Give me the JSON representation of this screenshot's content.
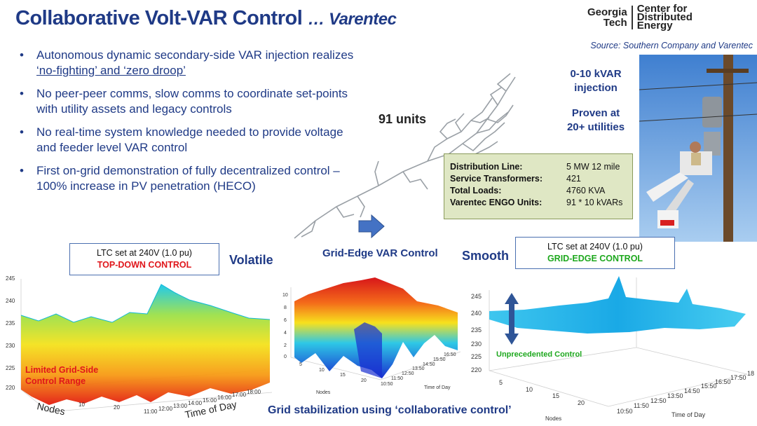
{
  "header": {
    "title": "Collaborative Volt-VAR Control",
    "subtitle": "… Varentec"
  },
  "logo": {
    "left_line1": "Georgia",
    "left_line2": "Tech",
    "right_line1": "Center for",
    "right_line2": "Distributed",
    "right_line3": "Energy"
  },
  "source": "Source: Southern Company and Varentec",
  "bullets": [
    {
      "pre": "Autonomous dynamic secondary-side VAR injection realizes ",
      "underlined": "‘no-fighting’ and ‘zero droop’"
    },
    {
      "pre": "No peer-peer comms, slow comms to coordinate set-points with utility assets and legacy controls",
      "underlined": ""
    },
    {
      "pre": "No real-time system knowledge needed to provide voltage and feeder level VAR control",
      "underlined": ""
    },
    {
      "pre": "First on-grid demonstration of fully decentralized control – 100% increase in PV penetration (HECO)",
      "underlined": ""
    }
  ],
  "map": {
    "units_label": "91 units"
  },
  "highlights": {
    "kvar_line1": "0-10 kVAR",
    "kvar_line2": "injection",
    "proven_line1": "Proven at",
    "proven_line2": "20+ utilities"
  },
  "infobox": [
    {
      "key": "Distribution Line:",
      "value": "5 MW 12 mile"
    },
    {
      "key": "Service Transformers:",
      "value": "421"
    },
    {
      "key": "Total Loads:",
      "value": "4760 KVA"
    },
    {
      "key": "Varentec ENGO Units:",
      "value": "91 * 10 kVARs"
    }
  ],
  "labels": {
    "ltc_left_line1": "LTC set at 240V (1.0 pu)",
    "ltc_left_line2": "TOP-DOWN CONTROL",
    "ltc_right_line1": "LTC set at 240V (1.0 pu)",
    "ltc_right_line2": "GRID-EDGE CONTROL",
    "volatile": "Volatile",
    "grid_edge_var": "Grid-Edge VAR Control",
    "smooth": "Smooth",
    "limited_line1": "Limited Grid-Side",
    "limited_line2": "Control Range",
    "unprecedented": "Unprecedented Control",
    "footer": "Grid stabilization using ‘collaborative control’"
  },
  "plots": {
    "left": {
      "z_ticks": [
        "245",
        "240",
        "235",
        "230",
        "225",
        "220"
      ],
      "node_ticks": [
        "10",
        "20"
      ],
      "time_ticks": [
        "11:00",
        "12:00",
        "13:00",
        "14:00",
        "15:00",
        "16:00",
        "17:00",
        "18:00"
      ],
      "xlabel": "Nodes",
      "ylabel": "Time of Day"
    },
    "middle": {
      "z_ticks": [
        "10",
        "8",
        "6",
        "4",
        "2",
        "0"
      ],
      "node_ticks": [
        "5",
        "10",
        "15",
        "20"
      ],
      "time_ticks": [
        "10:50",
        "11:50",
        "12:50",
        "13:50",
        "14:50",
        "15:50",
        "16:50"
      ],
      "xlabel": "Nodes",
      "ylabel": "Time of Day"
    },
    "right": {
      "z_ticks": [
        "245",
        "240",
        "235",
        "230",
        "225",
        "220"
      ],
      "node_ticks": [
        "5",
        "10",
        "15",
        "20"
      ],
      "time_ticks": [
        "10:50",
        "11:50",
        "12:50",
        "13:50",
        "14:50",
        "15:50",
        "16:50",
        "17:50",
        "18"
      ],
      "xlabel": "Nodes",
      "ylabel": "Time of Day"
    }
  },
  "colors": {
    "title_blue": "#1f3a86",
    "red": "#e0161b",
    "green": "#1ea81e",
    "box_fill": "#dfe7c4"
  }
}
